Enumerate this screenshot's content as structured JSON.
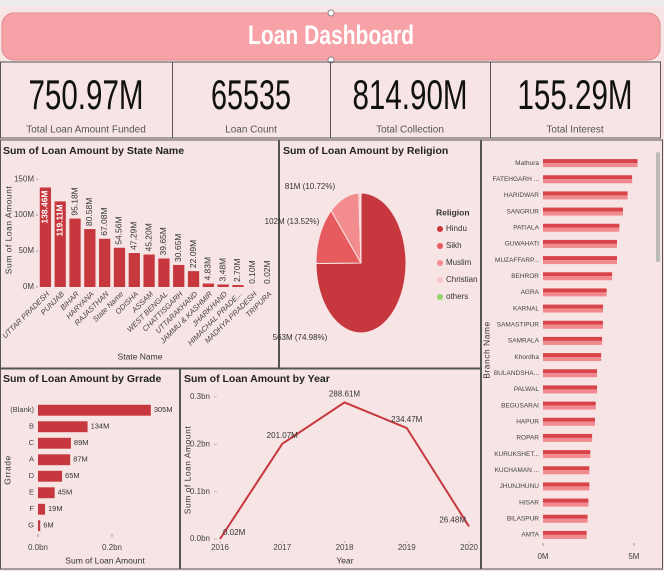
{
  "header": {
    "title": "Loan Dashboard"
  },
  "kpis": [
    {
      "value": "750.97M",
      "label": "Total Loan Amount Funded"
    },
    {
      "value": "65535",
      "label": "Loan Count"
    },
    {
      "value": "814.90M",
      "label": "Total Collection"
    },
    {
      "value": "155.29M",
      "label": "Total Interest"
    }
  ],
  "chart_data": [
    {
      "type": "bar",
      "title": "Sum of Loan Amount by State Name",
      "x_label": "State Name",
      "y_label": "Sum of Loan Amount",
      "categories": [
        "UTTAR PRADESH",
        "PUNJAB",
        "BIHAR",
        "HARYANA",
        "RAJASTHAN",
        "State Name",
        "ODISHA",
        "ASSAM",
        "WEST BENGAL",
        "CHATTISGARH",
        "UTTARAKHAND",
        "JAMMU & KASHMIR",
        "JHARKHAND",
        "HIMACHAL PRADE...",
        "MADHYA PRADESH",
        "TRIPURA"
      ],
      "values": [
        138.46,
        119.11,
        95.18,
        80.58,
        67.08,
        54.56,
        47.29,
        45.2,
        39.65,
        30.65,
        22.09,
        4.83,
        3.48,
        2.7,
        0.1,
        0.02
      ],
      "value_labels": [
        "138.46M",
        "119.11M",
        "95.18M",
        "80.58M",
        "67.08M",
        "54.56M",
        "47.29M",
        "45.20M",
        "39.65M",
        "30.65M",
        "22.09M",
        "4.83M",
        "3.48M",
        "2.70M",
        "0.10M",
        "0.02M"
      ],
      "color": "#c7383e",
      "ylim": [
        0,
        160
      ],
      "yticks": [
        {
          "value": 0,
          "label": "0M"
        },
        {
          "value": 50,
          "label": "50M"
        },
        {
          "value": 100,
          "label": "100M"
        },
        {
          "value": 150,
          "label": "150M"
        }
      ]
    },
    {
      "type": "pie",
      "title": "Sum of Loan Amount by Religion",
      "legend_title": "Religion",
      "categories": [
        "Hindu",
        "Sikh",
        "Muslim",
        "Christian",
        "others"
      ],
      "values": [
        563,
        102,
        81,
        4.5,
        1.4
      ],
      "value_labels": [
        "563M (74.98%)",
        "102M (13.52%)",
        "81M (10.72%)",
        null,
        null
      ],
      "colors": [
        "#c7383e",
        "#e65b5e",
        "#f28c8e",
        "#f7c3c4",
        "#8fd468"
      ]
    },
    {
      "type": "bar",
      "horizontal": true,
      "title": "Sum of Loan Amount by Grrade",
      "x_label": "Sum of Loan Amount",
      "y_label": "Grrade",
      "categories": [
        "(Blank)",
        "B",
        "C",
        "A",
        "D",
        "E",
        "F",
        "G"
      ],
      "values": [
        305,
        134,
        89,
        87,
        65,
        45,
        19,
        6
      ],
      "value_labels": [
        "305M",
        "134M",
        "89M",
        "87M",
        "65M",
        "45M",
        "19M",
        "6M"
      ],
      "color": "#c7383e",
      "xlim": [
        0,
        310
      ],
      "xticks": [
        {
          "value": 0,
          "label": "0.0bn"
        },
        {
          "value": 200,
          "label": "0.2bn"
        }
      ]
    },
    {
      "type": "line",
      "title": "Sum of Loan Amount by Year",
      "x_label": "Year",
      "y_label": "Sum of Loan Amount",
      "x": [
        2016,
        2017,
        2018,
        2019,
        2020
      ],
      "values": [
        0.02,
        201.07,
        288.61,
        234.47,
        26.48
      ],
      "value_labels": [
        "0.02M",
        "201.07M",
        "288.61M",
        "234.47M",
        "26.48M"
      ],
      "color": "#c7383e",
      "xlim": [
        2016,
        2020
      ],
      "xticks": [
        2016,
        2017,
        2018,
        2019,
        2020
      ],
      "ylim": [
        0,
        300
      ],
      "yticks": [
        {
          "value": 0,
          "label": "0.0bn"
        },
        {
          "value": 100,
          "label": "0.1bn"
        },
        {
          "value": 200,
          "label": "0.2bn"
        },
        {
          "value": 300,
          "label": "0.3bn"
        }
      ]
    },
    {
      "type": "bar",
      "horizontal": true,
      "y_label": "Branch Name",
      "categories": [
        "Mathura",
        "FATEHGARH ...",
        "HARIDWAR",
        "SANGRUR",
        "PATIALA",
        "GUWAHATI",
        "MUZAFFARP...",
        "BEHROR",
        "AGRA",
        "KARNAL",
        "SAMASTIPUR",
        "SAMRALA",
        "Khordha",
        "BULANDSHA...",
        "PALWAL",
        "BEGUSARAI",
        "HAPUR",
        "ROPAR",
        "KURUKSHET...",
        "KUCHAMAN ...",
        "JHUNJHUNU",
        "HISAR",
        "BILASPUR",
        "AMTA"
      ],
      "values": [
        5.2,
        4.9,
        4.65,
        4.4,
        4.2,
        4.07,
        4.07,
        3.8,
        3.5,
        3.3,
        3.3,
        3.25,
        3.2,
        2.97,
        2.97,
        2.9,
        2.86,
        2.7,
        2.6,
        2.55,
        2.55,
        2.5,
        2.45,
        2.4
      ],
      "color": "#d9434a",
      "xlim": [
        0,
        5.5
      ],
      "xticks": [
        {
          "value": 0,
          "label": "0M"
        },
        {
          "value": 5,
          "label": "5M"
        }
      ]
    }
  ]
}
